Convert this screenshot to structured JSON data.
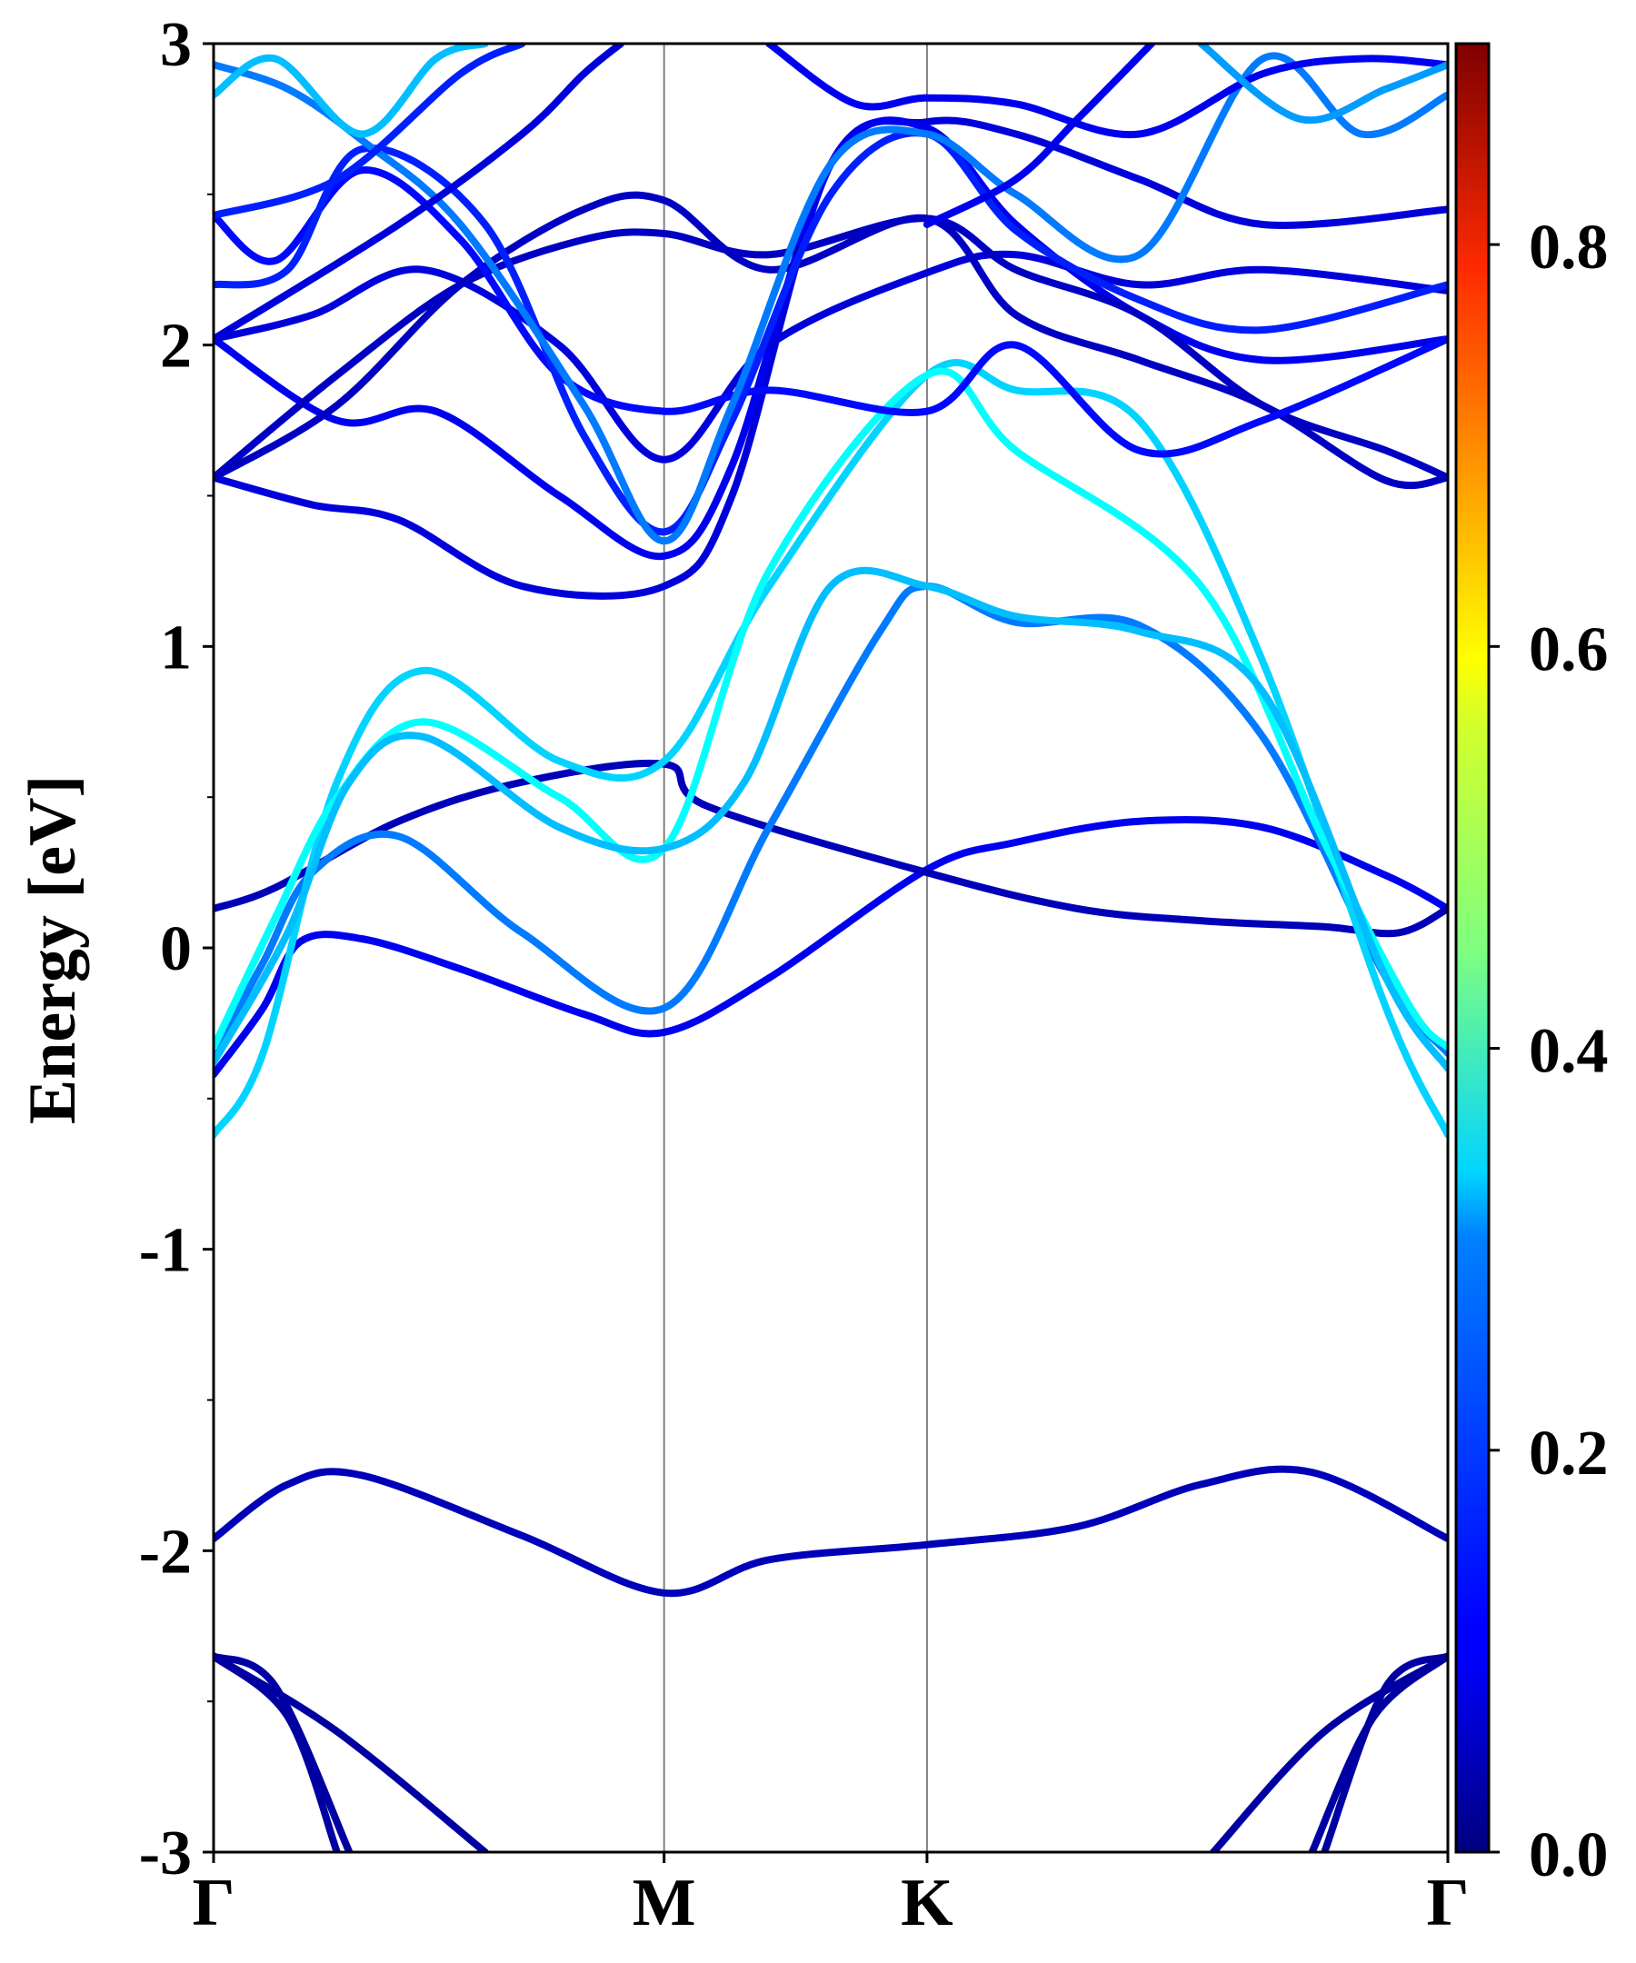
{
  "chart_data": {
    "type": "line",
    "subtype": "electronic band structure with projected weight colormap",
    "ylabel": "Energy [eV]",
    "xlabel": "",
    "ylim": [
      -3,
      3
    ],
    "yticks": [
      3,
      2,
      1,
      0,
      -1,
      -2,
      -3
    ],
    "ytick_labels": [
      "3",
      "2",
      "1",
      "0",
      "-1",
      "-2",
      "-3"
    ],
    "kpath": {
      "positions": [
        0,
        0.365,
        0.578,
        1
      ],
      "labels": [
        "Γ",
        "M",
        "K",
        "Γ"
      ]
    },
    "colorbar": {
      "colormap": "jet",
      "range": [
        0,
        0.9
      ],
      "ticks": [
        0.0,
        0.2,
        0.4,
        0.6,
        0.8
      ],
      "tick_labels": [
        "0.0",
        "0.2",
        "0.4",
        "0.6",
        "0.8"
      ]
    },
    "bands": [
      {
        "name": "band-low-a",
        "weight": 0.03,
        "points": [
          [
            0,
            -2.35
          ],
          [
            0.06,
            -2.55
          ],
          [
            0.1,
            -3.0
          ]
        ]
      },
      {
        "name": "band-low-b",
        "weight": 0.03,
        "points": [
          [
            0,
            -2.35
          ],
          [
            0.05,
            -2.45
          ],
          [
            0.11,
            -3.0
          ]
        ]
      },
      {
        "name": "band-low-c",
        "weight": 0.03,
        "points": [
          [
            0,
            -2.35
          ],
          [
            0.1,
            -2.6
          ],
          [
            0.22,
            -3.0
          ]
        ]
      },
      {
        "name": "band-low-d",
        "weight": 0.03,
        "points": [
          [
            1,
            -2.35
          ],
          [
            0.94,
            -2.55
          ],
          [
            0.89,
            -3.0
          ]
        ]
      },
      {
        "name": "band-low-e",
        "weight": 0.03,
        "points": [
          [
            1,
            -2.35
          ],
          [
            0.95,
            -2.45
          ],
          [
            0.9,
            -3.0
          ]
        ]
      },
      {
        "name": "band-low-f",
        "weight": 0.03,
        "points": [
          [
            1,
            -2.35
          ],
          [
            0.9,
            -2.6
          ],
          [
            0.81,
            -3.0
          ]
        ]
      },
      {
        "name": "band-flat",
        "weight": 0.05,
        "points": [
          [
            0,
            -1.96
          ],
          [
            0.06,
            -1.78
          ],
          [
            0.12,
            -1.75
          ],
          [
            0.25,
            -1.95
          ],
          [
            0.365,
            -2.14
          ],
          [
            0.45,
            -2.03
          ],
          [
            0.578,
            -1.98
          ],
          [
            0.7,
            -1.92
          ],
          [
            0.8,
            -1.78
          ],
          [
            0.89,
            -1.74
          ],
          [
            1,
            -1.96
          ]
        ]
      },
      {
        "name": "band-v1",
        "weight": 0.1,
        "points": [
          [
            0,
            -0.42
          ],
          [
            0.04,
            -0.2
          ],
          [
            0.07,
            0.02
          ],
          [
            0.12,
            0.03
          ],
          [
            0.2,
            -0.07
          ],
          [
            0.3,
            -0.22
          ],
          [
            0.365,
            -0.28
          ],
          [
            0.45,
            -0.1
          ],
          [
            0.578,
            0.26
          ],
          [
            0.65,
            0.35
          ],
          [
            0.75,
            0.42
          ],
          [
            0.85,
            0.4
          ],
          [
            0.95,
            0.24
          ],
          [
            1,
            0.13
          ]
        ]
      },
      {
        "name": "band-v2",
        "weight": 0.05,
        "points": [
          [
            0,
            0.13
          ],
          [
            0.05,
            0.2
          ],
          [
            0.15,
            0.42
          ],
          [
            0.25,
            0.55
          ],
          [
            0.365,
            0.61
          ],
          [
            0.4,
            0.47
          ],
          [
            0.578,
            0.25
          ],
          [
            0.7,
            0.13
          ],
          [
            0.8,
            0.09
          ],
          [
            0.9,
            0.07
          ],
          [
            0.96,
            0.05
          ],
          [
            1,
            0.13
          ]
        ]
      },
      {
        "name": "band-c1",
        "weight": 0.22,
        "points": [
          [
            0,
            -0.35
          ],
          [
            0.04,
            -0.05
          ],
          [
            0.08,
            0.25
          ],
          [
            0.15,
            0.37
          ],
          [
            0.25,
            0.05
          ],
          [
            0.365,
            -0.2
          ],
          [
            0.45,
            0.4
          ],
          [
            0.54,
            1.05
          ],
          [
            0.578,
            1.2
          ],
          [
            0.65,
            1.08
          ],
          [
            0.75,
            1.07
          ],
          [
            0.85,
            0.7
          ],
          [
            0.95,
            -0.1
          ],
          [
            1,
            -0.35
          ]
        ]
      },
      {
        "name": "band-c2",
        "weight": 0.3,
        "points": [
          [
            0,
            -0.62
          ],
          [
            0.04,
            -0.35
          ],
          [
            0.1,
            0.55
          ],
          [
            0.17,
            0.92
          ],
          [
            0.28,
            0.62
          ],
          [
            0.365,
            0.62
          ],
          [
            0.45,
            1.2
          ],
          [
            0.578,
            1.9
          ],
          [
            0.65,
            1.85
          ],
          [
            0.75,
            1.75
          ],
          [
            0.85,
            0.95
          ],
          [
            0.95,
            -0.2
          ],
          [
            1,
            -0.62
          ]
        ]
      },
      {
        "name": "band-c3",
        "weight": 0.34,
        "points": [
          [
            0,
            -0.33
          ],
          [
            0.05,
            0.1
          ],
          [
            0.1,
            0.5
          ],
          [
            0.17,
            0.75
          ],
          [
            0.28,
            0.5
          ],
          [
            0.365,
            0.33
          ],
          [
            0.45,
            1.25
          ],
          [
            0.578,
            1.9
          ],
          [
            0.65,
            1.65
          ],
          [
            0.8,
            1.2
          ],
          [
            0.9,
            0.35
          ],
          [
            0.97,
            -0.2
          ],
          [
            1,
            -0.33
          ]
        ]
      },
      {
        "name": "band-c4",
        "weight": 0.28,
        "points": [
          [
            0,
            -0.38
          ],
          [
            0.06,
            0.05
          ],
          [
            0.11,
            0.55
          ],
          [
            0.17,
            0.7
          ],
          [
            0.28,
            0.4
          ],
          [
            0.365,
            0.33
          ],
          [
            0.43,
            0.55
          ],
          [
            0.5,
            1.2
          ],
          [
            0.578,
            1.2
          ],
          [
            0.65,
            1.1
          ],
          [
            0.75,
            1.05
          ],
          [
            0.85,
            0.85
          ],
          [
            0.95,
            -0.1
          ],
          [
            1,
            -0.4
          ]
        ]
      },
      {
        "name": "band-u1",
        "weight": 0.08,
        "points": [
          [
            0,
            1.56
          ],
          [
            0.08,
            1.47
          ],
          [
            0.15,
            1.42
          ],
          [
            0.25,
            1.2
          ],
          [
            0.365,
            1.2
          ],
          [
            0.42,
            1.5
          ],
          [
            0.5,
            2.6
          ],
          [
            0.578,
            2.74
          ],
          [
            0.65,
            2.7
          ],
          [
            0.75,
            2.55
          ],
          [
            0.85,
            2.4
          ],
          [
            1,
            2.45
          ]
        ]
      },
      {
        "name": "band-u2",
        "weight": 0.1,
        "points": [
          [
            0,
            2.02
          ],
          [
            0.1,
            1.75
          ],
          [
            0.18,
            1.78
          ],
          [
            0.28,
            1.5
          ],
          [
            0.365,
            1.3
          ],
          [
            0.42,
            1.6
          ],
          [
            0.5,
            2.6
          ],
          [
            0.578,
            2.72
          ],
          [
            0.65,
            2.4
          ],
          [
            0.75,
            2.1
          ],
          [
            0.85,
            1.95
          ],
          [
            1,
            2.02
          ]
        ]
      },
      {
        "name": "band-u3",
        "weight": 0.08,
        "points": [
          [
            0,
            2.02
          ],
          [
            0.08,
            2.1
          ],
          [
            0.17,
            2.25
          ],
          [
            0.28,
            2.0
          ],
          [
            0.365,
            1.62
          ],
          [
            0.45,
            2.0
          ],
          [
            0.578,
            2.24
          ],
          [
            0.65,
            2.3
          ],
          [
            0.75,
            2.2
          ],
          [
            0.85,
            2.25
          ],
          [
            1,
            2.18
          ]
        ]
      },
      {
        "name": "band-u4",
        "weight": 0.06,
        "points": [
          [
            0,
            1.56
          ],
          [
            0.1,
            1.9
          ],
          [
            0.2,
            2.2
          ],
          [
            0.3,
            2.35
          ],
          [
            0.365,
            2.37
          ],
          [
            0.45,
            2.3
          ],
          [
            0.578,
            2.42
          ],
          [
            0.65,
            2.25
          ],
          [
            0.75,
            2.1
          ],
          [
            0.85,
            1.8
          ],
          [
            0.95,
            1.65
          ],
          [
            1,
            1.56
          ]
        ]
      },
      {
        "name": "band-u5",
        "weight": 0.06,
        "points": [
          [
            0,
            1.56
          ],
          [
            0.1,
            1.8
          ],
          [
            0.2,
            2.2
          ],
          [
            0.3,
            2.45
          ],
          [
            0.365,
            2.48
          ],
          [
            0.45,
            2.25
          ],
          [
            0.578,
            2.42
          ],
          [
            0.65,
            2.1
          ],
          [
            0.75,
            1.95
          ],
          [
            0.85,
            1.8
          ],
          [
            0.95,
            1.55
          ],
          [
            1,
            1.56
          ]
        ]
      },
      {
        "name": "band-u6",
        "weight": 0.12,
        "points": [
          [
            0,
            2.43
          ],
          [
            0.05,
            2.28
          ],
          [
            0.12,
            2.58
          ],
          [
            0.2,
            2.35
          ],
          [
            0.28,
            1.9
          ],
          [
            0.365,
            1.78
          ],
          [
            0.45,
            1.85
          ],
          [
            0.578,
            1.78
          ],
          [
            0.65,
            2.0
          ],
          [
            0.75,
            1.65
          ],
          [
            0.85,
            1.75
          ],
          [
            1,
            2.02
          ]
        ]
      },
      {
        "name": "band-u7",
        "weight": 0.14,
        "points": [
          [
            0,
            2.2
          ],
          [
            0.06,
            2.25
          ],
          [
            0.12,
            2.65
          ],
          [
            0.22,
            2.4
          ],
          [
            0.3,
            1.7
          ],
          [
            0.365,
            1.38
          ],
          [
            0.42,
            1.75
          ],
          [
            0.5,
            2.5
          ],
          [
            0.578,
            2.7
          ],
          [
            0.65,
            2.38
          ],
          [
            0.75,
            2.15
          ],
          [
            0.85,
            2.05
          ],
          [
            1,
            2.2
          ]
        ]
      },
      {
        "name": "band-u8",
        "weight": 0.22,
        "points": [
          [
            0,
            2.93
          ],
          [
            0.06,
            2.85
          ],
          [
            0.12,
            2.68
          ],
          [
            0.2,
            2.4
          ],
          [
            0.3,
            1.8
          ],
          [
            0.365,
            1.35
          ],
          [
            0.42,
            1.8
          ],
          [
            0.5,
            2.6
          ],
          [
            0.578,
            2.7
          ],
          [
            0.65,
            2.5
          ],
          [
            0.75,
            2.3
          ],
          [
            0.85,
            2.95
          ],
          [
            0.93,
            2.7
          ],
          [
            1,
            2.83
          ]
        ]
      },
      {
        "name": "band-u9",
        "weight": 0.28,
        "points": [
          [
            0,
            2.83
          ],
          [
            0.05,
            2.95
          ],
          [
            0.12,
            2.7
          ],
          [
            0.18,
            2.95
          ],
          [
            0.22,
            3.0
          ]
        ]
      },
      {
        "name": "band-u10",
        "weight": 0.1,
        "points": [
          [
            0.45,
            3.0
          ],
          [
            0.52,
            2.8
          ],
          [
            0.578,
            2.82
          ],
          [
            0.65,
            2.8
          ],
          [
            0.75,
            2.7
          ],
          [
            0.85,
            2.9
          ],
          [
            0.93,
            2.95
          ],
          [
            1,
            2.93
          ]
        ]
      },
      {
        "name": "band-u11",
        "weight": 0.14,
        "points": [
          [
            0,
            2.43
          ],
          [
            0.1,
            2.55
          ],
          [
            0.2,
            2.9
          ],
          [
            0.25,
            3.0
          ]
        ]
      },
      {
        "name": "band-u12",
        "weight": 0.1,
        "points": [
          [
            0.578,
            2.4
          ],
          [
            0.65,
            2.55
          ],
          [
            0.7,
            2.75
          ],
          [
            0.76,
            3.0
          ]
        ]
      },
      {
        "name": "band-u13",
        "weight": 0.08,
        "points": [
          [
            0,
            2.02
          ],
          [
            0.15,
            2.4
          ],
          [
            0.25,
            2.7
          ],
          [
            0.3,
            2.9
          ],
          [
            0.33,
            3.0
          ]
        ]
      },
      {
        "name": "band-u14",
        "weight": 0.25,
        "points": [
          [
            0.8,
            3.0
          ],
          [
            0.88,
            2.75
          ],
          [
            0.95,
            2.85
          ],
          [
            1,
            2.93
          ]
        ]
      }
    ]
  }
}
